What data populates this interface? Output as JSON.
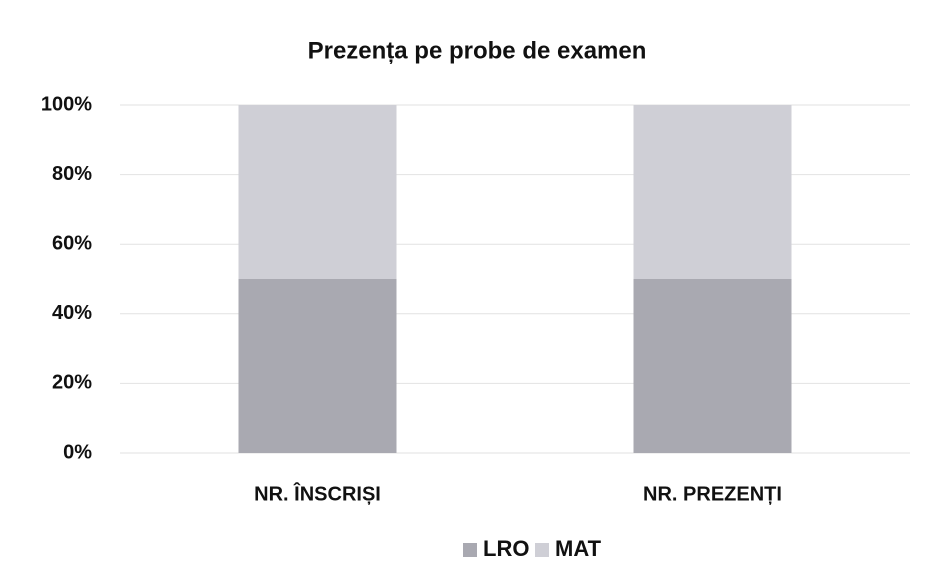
{
  "chart_data": {
    "type": "stacked_bar",
    "title": "Prezența pe probe de examen",
    "categories": [
      "NR. ÎNSCRIȘI",
      "NR. PREZENȚI"
    ],
    "series": [
      {
        "name": "LRO",
        "color": "#a9a9b1",
        "values": [
          50,
          50
        ]
      },
      {
        "name": "MAT",
        "color": "#cfcfd6",
        "values": [
          50,
          50
        ]
      }
    ],
    "ylim": [
      0,
      100
    ],
    "yticks": [
      {
        "value": 0,
        "label": "0%"
      },
      {
        "value": 20,
        "label": "20%"
      },
      {
        "value": 40,
        "label": "40%"
      },
      {
        "value": 60,
        "label": "60%"
      },
      {
        "value": 80,
        "label": "80%"
      },
      {
        "value": 100,
        "label": "100%"
      }
    ],
    "grid": true,
    "legend": "bottom"
  }
}
